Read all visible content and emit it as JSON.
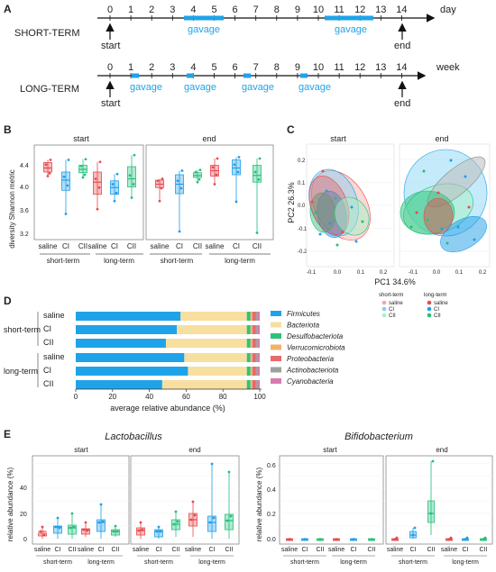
{
  "panelA": {
    "letter": "A",
    "short": {
      "label": "SHORT-TERM",
      "ticks": [
        "0",
        "1",
        "2",
        "3",
        "4",
        "5",
        "6",
        "7",
        "8",
        "9",
        "10",
        "11",
        "12",
        "13",
        "14"
      ],
      "unit": "day",
      "gavage": "gavage",
      "start": "start",
      "end": "end"
    },
    "long": {
      "label": "LONG-TERM",
      "ticks": [
        "0",
        "1",
        "2",
        "3",
        "4",
        "5",
        "6",
        "7",
        "8",
        "9",
        "10",
        "11",
        "12",
        "13",
        "14"
      ],
      "unit": "week",
      "gavage": "gavage",
      "start": "start",
      "end": "end"
    }
  },
  "panelB": {
    "letter": "B",
    "ylabel": "diversity Shannon metric",
    "yticks": [
      "4.4",
      "4.0",
      "3.6",
      "3.2"
    ],
    "facets": [
      "start",
      "end"
    ],
    "groups": [
      "saline",
      "CI",
      "CII",
      "saline",
      "CI",
      "CII"
    ],
    "terms": [
      "short-term",
      "long-term"
    ]
  },
  "panelC": {
    "letter": "C",
    "facets": [
      "start",
      "end"
    ],
    "xlabel": "PC1 34.6%",
    "ylabel": "PC2 26.3%",
    "yticks": [
      "0.2",
      "0.1",
      "0.0",
      "-0.1",
      "-0.2"
    ],
    "xticks_start": [
      "-0.1",
      "0.0",
      "0.1",
      "0.2"
    ],
    "xticks_end": [
      "-0.1",
      "0.0",
      "0.1",
      "0.2"
    ],
    "legend": {
      "short_title": "short-term",
      "long_title": "long-term",
      "items": [
        "saline",
        "CI",
        "CII"
      ]
    }
  },
  "panelD": {
    "letter": "D",
    "xlabel": "average relative abundance (%)",
    "xticks": [
      "0",
      "20",
      "40",
      "60",
      "80",
      "100"
    ],
    "rows": [
      "saline",
      "CI",
      "CII",
      "saline",
      "CI",
      "CII"
    ],
    "terms": [
      "short-term",
      "long-term"
    ],
    "legend": [
      "Firmicutes",
      "Bacteriota",
      "Desulfobacteriota",
      "Verrucomicrobiota",
      "Proteobacteria",
      "Actinobacteriota",
      "Cyanobacteria"
    ]
  },
  "panelE": {
    "letter": "E",
    "titles": [
      "Lactobacillus",
      "Bifidobacterium"
    ],
    "facets": [
      "start",
      "end"
    ],
    "ylabel": "relative abundance (%)",
    "yticks_left": [
      "40",
      "20",
      "0"
    ],
    "yticks_right": [
      "0.6",
      "0.4",
      "0.2",
      "0.0"
    ],
    "groups": [
      "saline",
      "CI",
      "CII",
      "saline",
      "CI",
      "CII"
    ],
    "terms": [
      "short-term",
      "long-term"
    ]
  },
  "colors": {
    "saline": "#e8494c",
    "CI": "#1f9ee8",
    "CII": "#22c07a",
    "bar": [
      "#1fa3e8",
      "#f7dfa0",
      "#2fc27a",
      "#f1b36a",
      "#e86a6a",
      "#a0a0a0",
      "#d87ab0"
    ]
  },
  "chart_data": [
    {
      "type": "bar",
      "stacked": true,
      "orientation": "horizontal",
      "categories": [
        "short-term saline",
        "short-term CI",
        "short-term CII",
        "long-term saline",
        "long-term CI",
        "long-term CII"
      ],
      "series": [
        {
          "name": "Firmicutes",
          "values": [
            57,
            55,
            49,
            59,
            61,
            47
          ]
        },
        {
          "name": "Bacteriota",
          "values": [
            36,
            38,
            44,
            34,
            32,
            46
          ]
        },
        {
          "name": "Desulfobacteriota",
          "values": [
            2,
            2,
            2,
            2,
            2,
            2
          ]
        },
        {
          "name": "Verrucomicrobiota",
          "values": [
            1,
            1,
            1,
            1,
            1,
            1
          ]
        },
        {
          "name": "Proteobacteria",
          "values": [
            2,
            2,
            2,
            2,
            2,
            2
          ]
        },
        {
          "name": "Actinobacteriota",
          "values": [
            1,
            1,
            1,
            1,
            1,
            1
          ]
        },
        {
          "name": "Cyanobacteria",
          "values": [
            1,
            1,
            1,
            1,
            1,
            1
          ]
        }
      ],
      "xlabel": "average relative abundance (%)",
      "xlim": [
        0,
        100
      ]
    },
    {
      "type": "box",
      "title": "",
      "ylabel": "diversity Shannon metric",
      "ylim": [
        3.2,
        4.6
      ],
      "facets": [
        "start",
        "end"
      ],
      "categories": [
        "saline",
        "CI",
        "CII",
        "saline",
        "CI",
        "CII"
      ],
      "medians_start": [
        4.26,
        4.08,
        4.24,
        4.05,
        3.97,
        4.1
      ],
      "medians_end": [
        4.02,
        4.02,
        4.15,
        4.22,
        4.26,
        4.15
      ]
    }
  ]
}
